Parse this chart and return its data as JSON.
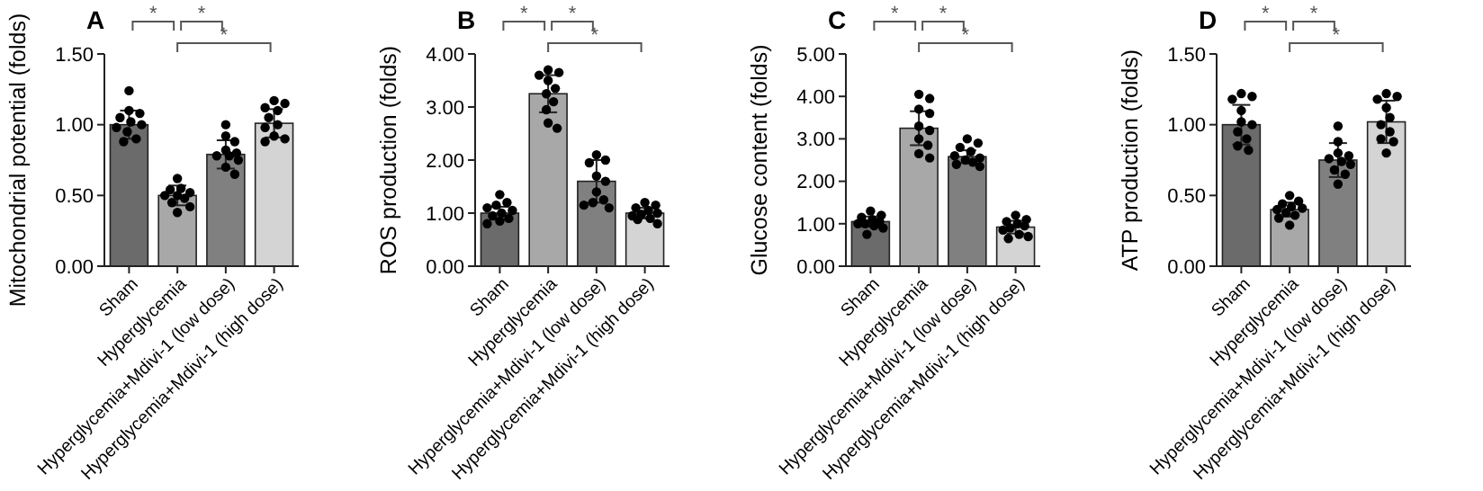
{
  "chart_data": [
    {
      "type": "bar",
      "title": "A",
      "ylabel": "Mitochondrial potential (folds)",
      "categories": [
        "Sham",
        "Hyperglycemia",
        "Hyperglycemia+Mdivi-1 (low dose)",
        "Hyperglycemia+Mdivi-1 (high dose)"
      ],
      "ylim": [
        0,
        1.5
      ],
      "yticks": [
        {
          "value": 0,
          "label": "0.00"
        },
        {
          "value": 0.5,
          "label": "0.50"
        },
        {
          "value": 1,
          "label": "1.00"
        },
        {
          "value": 1.5,
          "label": "1.50"
        }
      ],
      "annotations": [
        "*",
        "*",
        "*"
      ],
      "series": [
        {
          "colors": [
            "#6b6b6b",
            "#a8a8a8",
            "#808080",
            "#d4d4d4"
          ],
          "values": [
            1.0,
            0.5,
            0.79,
            1.01
          ],
          "errors": [
            0.1,
            0.07,
            0.1,
            0.1
          ]
        },
        {
          "type": "scatter",
          "color": "#000000",
          "x": [
            "Sham",
            "Sham",
            "Sham",
            "Sham",
            "Sham",
            "Sham",
            "Sham",
            "Sham",
            "Sham",
            "Sham",
            "Hyperglycemia",
            "Hyperglycemia",
            "Hyperglycemia",
            "Hyperglycemia",
            "Hyperglycemia",
            "Hyperglycemia",
            "Hyperglycemia",
            "Hyperglycemia",
            "Hyperglycemia",
            "Hyperglycemia",
            "Hyperglycemia+Mdivi-1 (low dose)",
            "Hyperglycemia+Mdivi-1 (low dose)",
            "Hyperglycemia+Mdivi-1 (low dose)",
            "Hyperglycemia+Mdivi-1 (low dose)",
            "Hyperglycemia+Mdivi-1 (low dose)",
            "Hyperglycemia+Mdivi-1 (low dose)",
            "Hyperglycemia+Mdivi-1 (low dose)",
            "Hyperglycemia+Mdivi-1 (low dose)",
            "Hyperglycemia+Mdivi-1 (low dose)",
            "Hyperglycemia+Mdivi-1 (low dose)",
            "Hyperglycemia+Mdivi-1 (high dose)",
            "Hyperglycemia+Mdivi-1 (high dose)",
            "Hyperglycemia+Mdivi-1 (high dose)",
            "Hyperglycemia+Mdivi-1 (high dose)",
            "Hyperglycemia+Mdivi-1 (high dose)",
            "Hyperglycemia+Mdivi-1 (high dose)",
            "Hyperglycemia+Mdivi-1 (high dose)",
            "Hyperglycemia+Mdivi-1 (high dose)",
            "Hyperglycemia+Mdivi-1 (high dose)",
            "Hyperglycemia+Mdivi-1 (high dose)"
          ],
          "values": [
            1.24,
            1.1,
            1.08,
            1.05,
            1.02,
            1.0,
            0.98,
            0.95,
            0.9,
            0.88,
            0.62,
            0.55,
            0.54,
            0.52,
            0.5,
            0.5,
            0.48,
            0.45,
            0.42,
            0.38,
            1.0,
            0.92,
            0.88,
            0.82,
            0.8,
            0.78,
            0.78,
            0.75,
            0.7,
            0.65,
            1.17,
            1.15,
            1.12,
            1.1,
            1.05,
            1.0,
            0.98,
            0.92,
            0.9,
            0.88
          ]
        }
      ]
    },
    {
      "type": "bar",
      "title": "B",
      "ylabel": "ROS production (folds)",
      "categories": [
        "Sham",
        "Hyperglycemia",
        "Hyperglycemia+Mdivi-1 (low dose)",
        "Hyperglycemia+Mdivi-1 (high dose)"
      ],
      "ylim": [
        0,
        4
      ],
      "yticks": [
        {
          "value": 0,
          "label": "0.00"
        },
        {
          "value": 1,
          "label": "1.00"
        },
        {
          "value": 2,
          "label": "2.00"
        },
        {
          "value": 3,
          "label": "3.00"
        },
        {
          "value": 4,
          "label": "4.00"
        }
      ],
      "annotations": [
        "*",
        "*",
        "*"
      ],
      "series": [
        {
          "colors": [
            "#6b6b6b",
            "#a8a8a8",
            "#808080",
            "#d4d4d4"
          ],
          "values": [
            1.0,
            3.25,
            1.6,
            1.0
          ],
          "errors": [
            0.12,
            0.35,
            0.4,
            0.1
          ]
        },
        {
          "type": "scatter",
          "color": "#000000",
          "x": [
            "Sham",
            "Sham",
            "Sham",
            "Sham",
            "Sham",
            "Sham",
            "Sham",
            "Sham",
            "Sham",
            "Sham",
            "Hyperglycemia",
            "Hyperglycemia",
            "Hyperglycemia",
            "Hyperglycemia",
            "Hyperglycemia",
            "Hyperglycemia",
            "Hyperglycemia",
            "Hyperglycemia",
            "Hyperglycemia",
            "Hyperglycemia",
            "Hyperglycemia+Mdivi-1 (low dose)",
            "Hyperglycemia+Mdivi-1 (low dose)",
            "Hyperglycemia+Mdivi-1 (low dose)",
            "Hyperglycemia+Mdivi-1 (low dose)",
            "Hyperglycemia+Mdivi-1 (low dose)",
            "Hyperglycemia+Mdivi-1 (low dose)",
            "Hyperglycemia+Mdivi-1 (low dose)",
            "Hyperglycemia+Mdivi-1 (low dose)",
            "Hyperglycemia+Mdivi-1 (low dose)",
            "Hyperglycemia+Mdivi-1 (low dose)",
            "Hyperglycemia+Mdivi-1 (high dose)",
            "Hyperglycemia+Mdivi-1 (high dose)",
            "Hyperglycemia+Mdivi-1 (high dose)",
            "Hyperglycemia+Mdivi-1 (high dose)",
            "Hyperglycemia+Mdivi-1 (high dose)",
            "Hyperglycemia+Mdivi-1 (high dose)",
            "Hyperglycemia+Mdivi-1 (high dose)",
            "Hyperglycemia+Mdivi-1 (high dose)",
            "Hyperglycemia+Mdivi-1 (high dose)",
            "Hyperglycemia+Mdivi-1 (high dose)"
          ],
          "values": [
            1.35,
            1.2,
            1.15,
            1.1,
            1.05,
            1.0,
            0.95,
            0.9,
            0.85,
            0.8,
            3.7,
            3.65,
            3.6,
            3.5,
            3.35,
            3.25,
            3.1,
            2.95,
            2.7,
            2.6,
            2.1,
            2.0,
            1.95,
            1.7,
            1.6,
            1.4,
            1.25,
            1.2,
            1.15,
            1.1,
            1.2,
            1.15,
            1.1,
            1.05,
            1.0,
            0.98,
            0.95,
            0.9,
            0.88,
            0.8
          ]
        }
      ]
    },
    {
      "type": "bar",
      "title": "C",
      "ylabel": "Glucose content (folds)",
      "categories": [
        "Sham",
        "Hyperglycemia",
        "Hyperglycemia+Mdivi-1 (low dose)",
        "Hyperglycemia+Mdivi-1 (high dose)"
      ],
      "ylim": [
        0,
        5
      ],
      "yticks": [
        {
          "value": 0,
          "label": "0.00"
        },
        {
          "value": 1,
          "label": "1.00"
        },
        {
          "value": 2,
          "label": "2.00"
        },
        {
          "value": 3,
          "label": "3.00"
        },
        {
          "value": 4,
          "label": "4.00"
        },
        {
          "value": 5,
          "label": "5.00"
        }
      ],
      "annotations": [
        "*",
        "*",
        "*"
      ],
      "series": [
        {
          "colors": [
            "#6b6b6b",
            "#a8a8a8",
            "#808080",
            "#d4d4d4"
          ],
          "values": [
            1.05,
            3.25,
            2.58,
            0.92
          ],
          "errors": [
            0.12,
            0.4,
            0.15,
            0.15
          ]
        },
        {
          "type": "scatter",
          "color": "#000000",
          "x": [
            "Sham",
            "Sham",
            "Sham",
            "Sham",
            "Sham",
            "Sham",
            "Sham",
            "Sham",
            "Sham",
            "Sham",
            "Hyperglycemia",
            "Hyperglycemia",
            "Hyperglycemia",
            "Hyperglycemia",
            "Hyperglycemia",
            "Hyperglycemia",
            "Hyperglycemia",
            "Hyperglycemia",
            "Hyperglycemia",
            "Hyperglycemia",
            "Hyperglycemia+Mdivi-1 (low dose)",
            "Hyperglycemia+Mdivi-1 (low dose)",
            "Hyperglycemia+Mdivi-1 (low dose)",
            "Hyperglycemia+Mdivi-1 (low dose)",
            "Hyperglycemia+Mdivi-1 (low dose)",
            "Hyperglycemia+Mdivi-1 (low dose)",
            "Hyperglycemia+Mdivi-1 (low dose)",
            "Hyperglycemia+Mdivi-1 (low dose)",
            "Hyperglycemia+Mdivi-1 (low dose)",
            "Hyperglycemia+Mdivi-1 (low dose)",
            "Hyperglycemia+Mdivi-1 (high dose)",
            "Hyperglycemia+Mdivi-1 (high dose)",
            "Hyperglycemia+Mdivi-1 (high dose)",
            "Hyperglycemia+Mdivi-1 (high dose)",
            "Hyperglycemia+Mdivi-1 (high dose)",
            "Hyperglycemia+Mdivi-1 (high dose)",
            "Hyperglycemia+Mdivi-1 (high dose)",
            "Hyperglycemia+Mdivi-1 (high dose)",
            "Hyperglycemia+Mdivi-1 (high dose)",
            "Hyperglycemia+Mdivi-1 (high dose)"
          ],
          "values": [
            1.3,
            1.2,
            1.15,
            1.1,
            1.05,
            1.0,
            1.0,
            0.95,
            0.9,
            0.75,
            4.05,
            3.95,
            3.7,
            3.6,
            3.3,
            3.2,
            3.0,
            2.85,
            2.65,
            2.55,
            3.0,
            2.9,
            2.8,
            2.7,
            2.6,
            2.55,
            2.5,
            2.45,
            2.4,
            2.35,
            1.2,
            1.1,
            1.05,
            1.0,
            0.95,
            0.9,
            0.85,
            0.75,
            0.7,
            0.65
          ]
        }
      ]
    },
    {
      "type": "bar",
      "title": "D",
      "ylabel": "ATP production (folds)",
      "categories": [
        "Sham",
        "Hyperglycemia",
        "Hyperglycemia+Mdivi-1 (low dose)",
        "Hyperglycemia+Mdivi-1 (high dose)"
      ],
      "ylim": [
        0,
        1.5
      ],
      "yticks": [
        {
          "value": 0,
          "label": "0.00"
        },
        {
          "value": 0.5,
          "label": "0.50"
        },
        {
          "value": 1,
          "label": "1.00"
        },
        {
          "value": 1.5,
          "label": "1.50"
        }
      ],
      "annotations": [
        "*",
        "*",
        "*"
      ],
      "series": [
        {
          "colors": [
            "#6b6b6b",
            "#a8a8a8",
            "#808080",
            "#d4d4d4"
          ],
          "values": [
            1.0,
            0.4,
            0.75,
            1.02
          ],
          "errors": [
            0.14,
            0.05,
            0.12,
            0.15
          ]
        },
        {
          "type": "scatter",
          "color": "#000000",
          "x": [
            "Sham",
            "Sham",
            "Sham",
            "Sham",
            "Sham",
            "Sham",
            "Sham",
            "Sham",
            "Sham",
            "Sham",
            "Hyperglycemia",
            "Hyperglycemia",
            "Hyperglycemia",
            "Hyperglycemia",
            "Hyperglycemia",
            "Hyperglycemia",
            "Hyperglycemia",
            "Hyperglycemia",
            "Hyperglycemia",
            "Hyperglycemia",
            "Hyperglycemia+Mdivi-1 (low dose)",
            "Hyperglycemia+Mdivi-1 (low dose)",
            "Hyperglycemia+Mdivi-1 (low dose)",
            "Hyperglycemia+Mdivi-1 (low dose)",
            "Hyperglycemia+Mdivi-1 (low dose)",
            "Hyperglycemia+Mdivi-1 (low dose)",
            "Hyperglycemia+Mdivi-1 (low dose)",
            "Hyperglycemia+Mdivi-1 (low dose)",
            "Hyperglycemia+Mdivi-1 (low dose)",
            "Hyperglycemia+Mdivi-1 (low dose)",
            "Hyperglycemia+Mdivi-1 (high dose)",
            "Hyperglycemia+Mdivi-1 (high dose)",
            "Hyperglycemia+Mdivi-1 (high dose)",
            "Hyperglycemia+Mdivi-1 (high dose)",
            "Hyperglycemia+Mdivi-1 (high dose)",
            "Hyperglycemia+Mdivi-1 (high dose)",
            "Hyperglycemia+Mdivi-1 (high dose)",
            "Hyperglycemia+Mdivi-1 (high dose)",
            "Hyperglycemia+Mdivi-1 (high dose)",
            "Hyperglycemia+Mdivi-1 (high dose)"
          ],
          "values": [
            1.22,
            1.2,
            1.18,
            1.1,
            1.02,
            1.0,
            0.95,
            0.9,
            0.85,
            0.82,
            0.5,
            0.46,
            0.44,
            0.42,
            0.41,
            0.4,
            0.38,
            0.36,
            0.34,
            0.29,
            0.99,
            0.88,
            0.8,
            0.78,
            0.76,
            0.74,
            0.72,
            0.68,
            0.65,
            0.58,
            1.22,
            1.2,
            1.18,
            1.12,
            1.05,
            1.0,
            0.95,
            0.9,
            0.88,
            0.8
          ]
        }
      ]
    }
  ]
}
